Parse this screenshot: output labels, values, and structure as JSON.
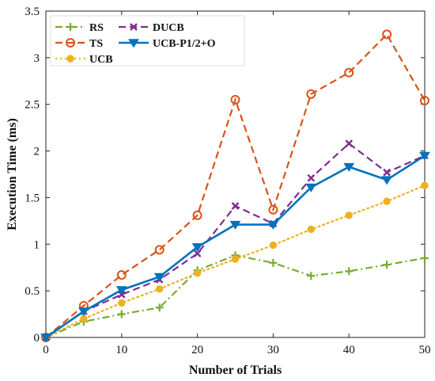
{
  "chart_data": {
    "type": "line",
    "xlabel": "Number of Trials",
    "ylabel": "Execution Time (ms)",
    "xlim": [
      0,
      50
    ],
    "ylim": [
      0,
      3.5
    ],
    "xticks": [
      0,
      10,
      20,
      30,
      40,
      50
    ],
    "yticks": [
      0,
      0.5,
      1,
      1.5,
      2,
      2.5,
      3,
      3.5
    ],
    "xtick_labels": [
      "0",
      "10",
      "20",
      "30",
      "40",
      "50"
    ],
    "ytick_labels": [
      "0",
      "0.5",
      "1",
      "1.5",
      "2",
      "2.5",
      "3",
      "3.5"
    ],
    "grid": false,
    "legend_position": "top-left",
    "x": [
      0,
      5,
      10,
      15,
      20,
      25,
      30,
      35,
      40,
      45,
      50
    ],
    "series": [
      {
        "name": "RS",
        "color": "#77AC30",
        "dash": "dash-dot",
        "marker": "plus",
        "values": [
          0,
          0.17,
          0.25,
          0.32,
          0.72,
          0.88,
          0.8,
          0.66,
          0.71,
          0.78,
          0.85
        ]
      },
      {
        "name": "TS",
        "color": "#D95319",
        "dash": "dashed",
        "marker": "circle",
        "values": [
          0,
          0.34,
          0.67,
          0.94,
          1.31,
          2.55,
          1.37,
          2.61,
          2.84,
          3.25,
          2.54
        ]
      },
      {
        "name": "UCB",
        "color": "#EDB120",
        "dash": "dotted",
        "marker": "dot",
        "values": [
          0,
          0.2,
          0.37,
          0.52,
          0.69,
          0.84,
          0.99,
          1.16,
          1.31,
          1.46,
          1.63
        ]
      },
      {
        "name": "DUCB",
        "color": "#7E2F8E",
        "dash": "dashed",
        "marker": "x",
        "values": [
          0,
          0.28,
          0.46,
          0.62,
          0.9,
          1.41,
          1.22,
          1.71,
          2.08,
          1.77,
          1.95
        ]
      },
      {
        "name": "UCB-P1/2+O",
        "color": "#0072BD",
        "dash": "solid",
        "marker": "triangle-down",
        "values": [
          0,
          0.28,
          0.51,
          0.65,
          0.97,
          1.21,
          1.21,
          1.61,
          1.83,
          1.69,
          1.95
        ]
      }
    ]
  }
}
